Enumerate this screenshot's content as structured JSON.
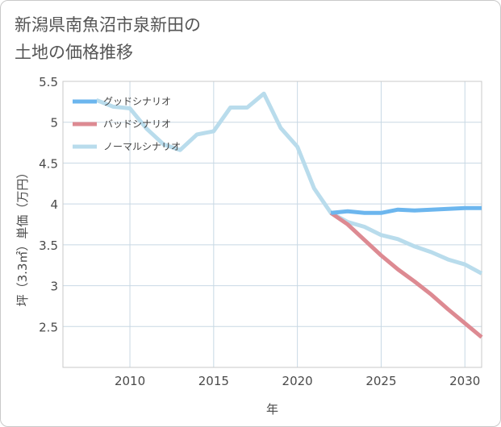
{
  "title_lines": [
    "新潟県南魚沼市泉新田の",
    "土地の価格推移"
  ],
  "chart_data": {
    "type": "line",
    "title": "新潟県南魚沼市泉新田の土地の価格推移",
    "xlabel": "年",
    "ylabel": "坪（3.3㎡）単価（万円）",
    "xlim": [
      2006,
      2031
    ],
    "ylim": [
      2.0,
      5.5
    ],
    "xticks": [
      2010,
      2015,
      2020,
      2025,
      2030
    ],
    "yticks": [
      2.5,
      3,
      3.5,
      4,
      4.5,
      5,
      5.5
    ],
    "ytick_labels": [
      "2.5",
      "3",
      "3.5",
      "4",
      "4.5",
      "5",
      "5.5"
    ],
    "grid": true,
    "legend_position": "top-left",
    "series": [
      {
        "name": "グッドシナリオ",
        "color": "#6cb6ee",
        "x": [
          2022,
          2023,
          2024,
          2025,
          2026,
          2027,
          2028,
          2029,
          2030,
          2031
        ],
        "y": [
          3.89,
          3.91,
          3.89,
          3.89,
          3.93,
          3.92,
          3.93,
          3.94,
          3.95,
          3.95
        ]
      },
      {
        "name": "バッドシナリオ",
        "color": "#dd8a92",
        "x": [
          2022,
          2023,
          2024,
          2025,
          2026,
          2027,
          2028,
          2029,
          2030,
          2031
        ],
        "y": [
          3.89,
          3.75,
          3.56,
          3.37,
          3.2,
          3.05,
          2.89,
          2.71,
          2.54,
          2.37
        ]
      },
      {
        "name": "ノーマルシナリオ",
        "color": "#b9dcec",
        "x": [
          2008,
          2009,
          2010,
          2011,
          2012,
          2013,
          2014,
          2015,
          2016,
          2017,
          2018,
          2019,
          2020,
          2021,
          2022,
          2023,
          2024,
          2025,
          2026,
          2027,
          2028,
          2029,
          2030,
          2031
        ],
        "y": [
          5.27,
          5.19,
          5.17,
          4.92,
          4.73,
          4.66,
          4.85,
          4.89,
          5.18,
          5.18,
          5.35,
          4.93,
          4.7,
          4.19,
          3.89,
          3.78,
          3.72,
          3.62,
          3.57,
          3.48,
          3.41,
          3.32,
          3.26,
          3.15
        ]
      }
    ]
  }
}
